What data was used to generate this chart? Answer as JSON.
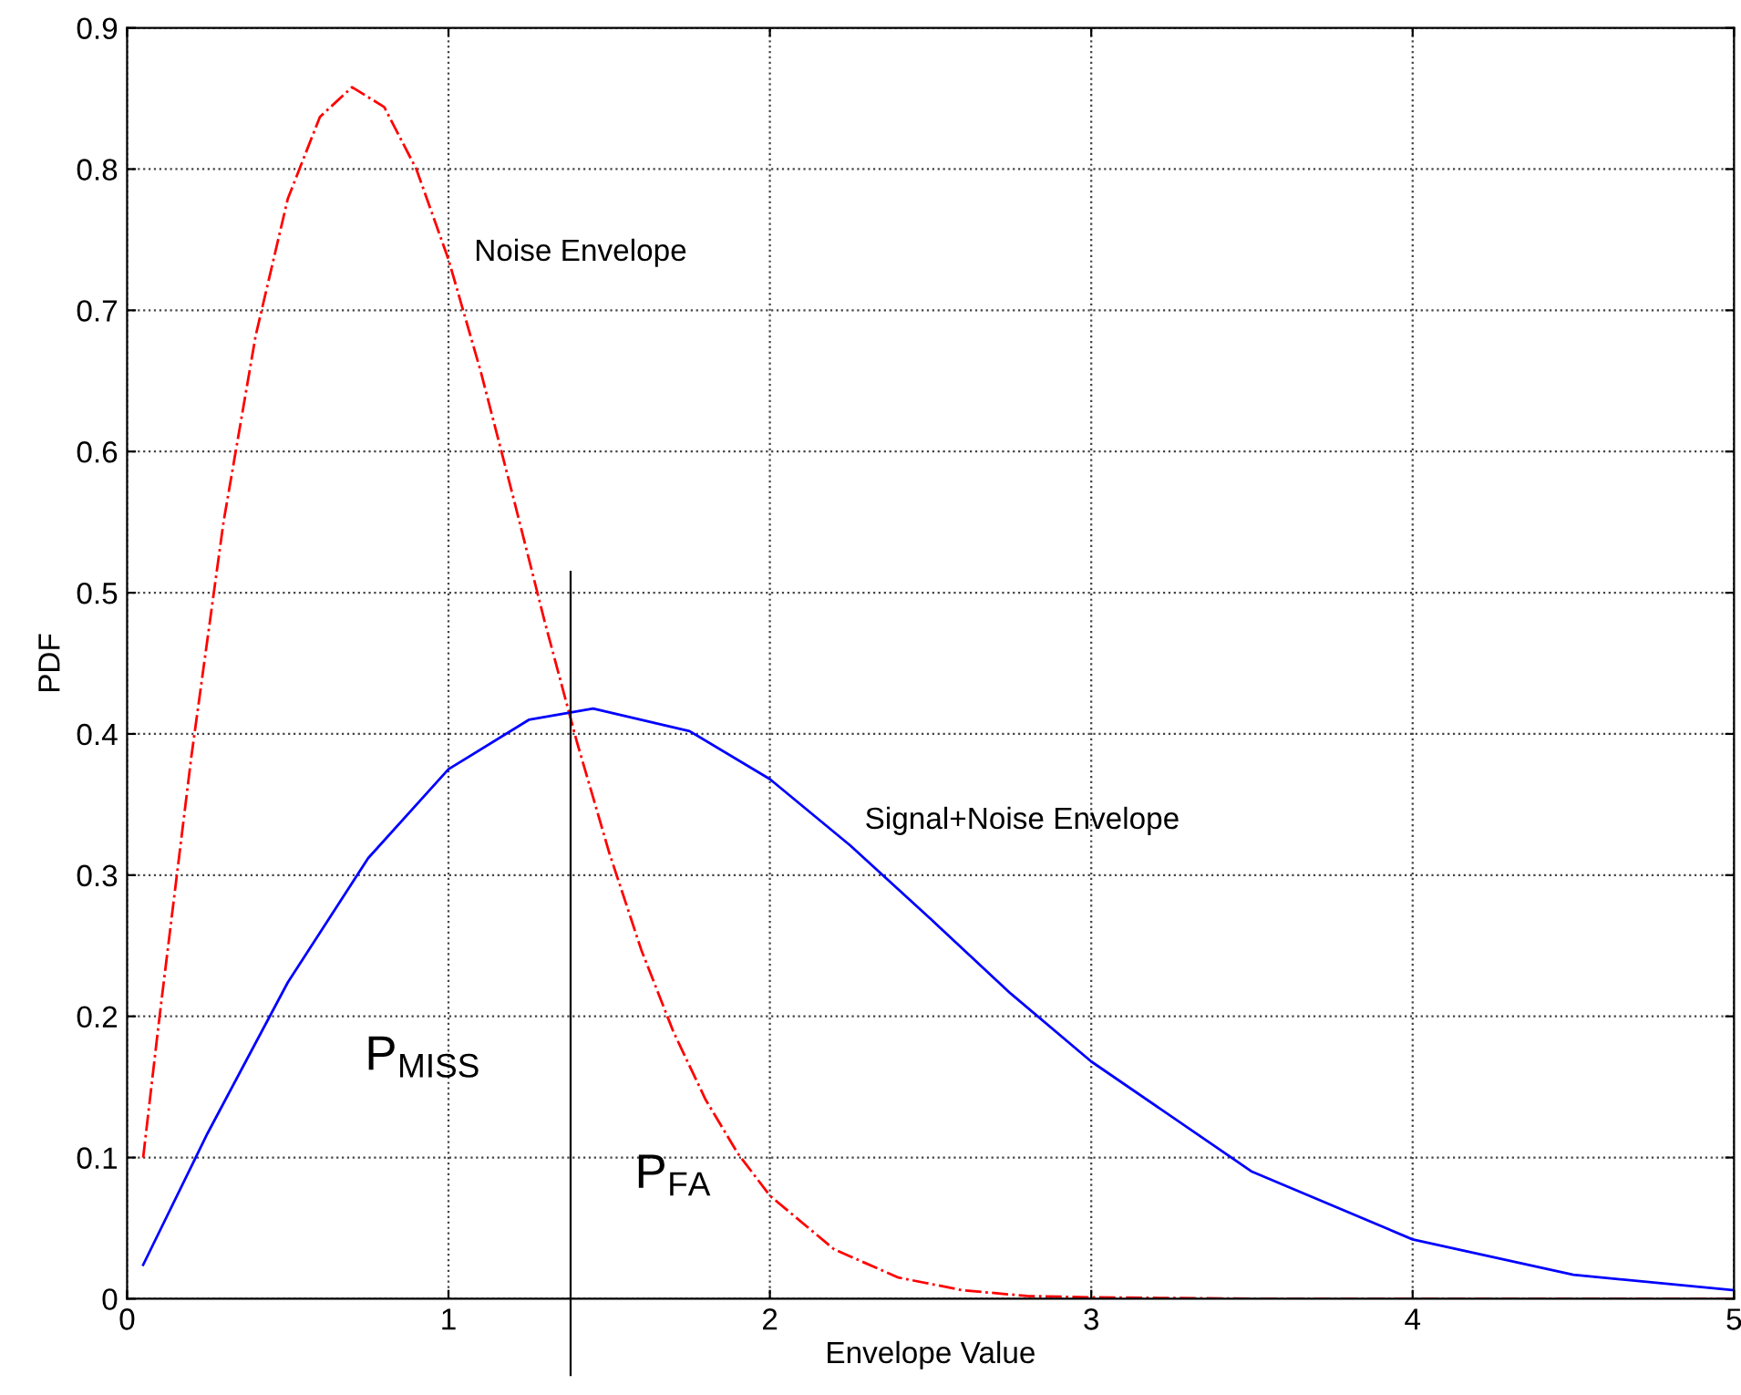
{
  "chart_data": {
    "type": "line",
    "xlabel": "Envelope Value",
    "ylabel": "PDF",
    "xlim": [
      0,
      5
    ],
    "ylim": [
      0,
      0.9
    ],
    "xticks": [
      0,
      1,
      2,
      3,
      4,
      5
    ],
    "yticks": [
      0,
      0.1,
      0.2,
      0.3,
      0.4,
      0.5,
      0.6,
      0.7,
      0.8,
      0.9
    ],
    "grid": true,
    "marker": "none",
    "series": [
      {
        "color": "#ff0000",
        "line_style": "dashdot",
        "x": [
          0.05,
          0.1,
          0.2,
          0.3,
          0.4,
          0.5,
          0.6,
          0.7,
          0.8,
          0.9,
          1.0,
          1.1,
          1.2,
          1.3,
          1.4,
          1.5,
          1.6,
          1.7,
          1.8,
          1.9,
          2.0,
          2.2,
          2.4,
          2.6,
          2.8,
          3.0,
          3.5,
          4.0,
          5.0
        ],
        "values": [
          0.1,
          0.198,
          0.384,
          0.55,
          0.682,
          0.779,
          0.837,
          0.858,
          0.844,
          0.8,
          0.736,
          0.657,
          0.569,
          0.479,
          0.394,
          0.316,
          0.247,
          0.189,
          0.141,
          0.103,
          0.073,
          0.035,
          0.015,
          0.006,
          0.002,
          0.001,
          0,
          0,
          0
        ]
      },
      {
        "color": "#0000ff",
        "line_style": "solid",
        "x": [
          0.05,
          0.25,
          0.5,
          0.75,
          1.0,
          1.25,
          1.45,
          1.75,
          2.0,
          2.25,
          2.5,
          2.75,
          3.0,
          3.5,
          4.0,
          4.5,
          5.0
        ],
        "values": [
          0.024,
          0.117,
          0.224,
          0.312,
          0.375,
          0.41,
          0.418,
          0.402,
          0.368,
          0.321,
          0.269,
          0.216,
          0.168,
          0.09,
          0.042,
          0.017,
          0.006
        ]
      }
    ],
    "ref_lines": [
      {
        "axis": "x",
        "value": 1.38,
        "color": "#000000"
      }
    ],
    "annotations": [
      "Noise Envelope",
      "Signal+Noise Envelope",
      "P$_{MISS}$",
      "P$_{FA}$"
    ]
  }
}
